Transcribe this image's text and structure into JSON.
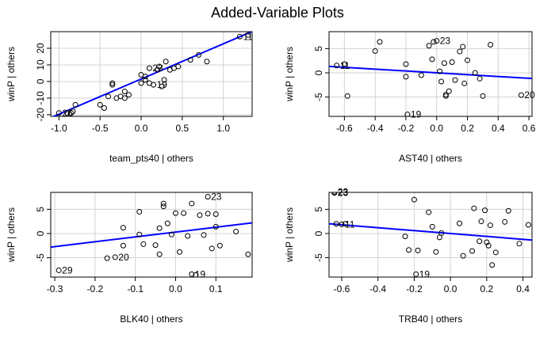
{
  "figure": {
    "title": "Added-Variable Plots",
    "colors": {
      "fit_line": "#0000ff",
      "grid": "#d3d3d3",
      "points": "#000000",
      "axes": "#000000"
    }
  },
  "chart_data": [
    {
      "type": "scatter",
      "xlabel": "team_pts40 | others",
      "ylabel": "winP  | others",
      "xlim": [
        -1.1,
        1.35
      ],
      "ylim": [
        -21,
        30
      ],
      "xticks": [
        -1.0,
        -0.5,
        0.0,
        0.5,
        1.0
      ],
      "xtick_labels": [
        "-1.0",
        "-0.5",
        "0.0",
        "0.5",
        "1.0"
      ],
      "yticks": [
        -20,
        -10,
        0,
        10,
        20
      ],
      "ytick_labels": [
        "-20",
        "-10",
        "0",
        "10",
        "20"
      ],
      "grid": true,
      "fit_line": {
        "intercept": 1.5,
        "slope": 21.2
      },
      "points": [
        [
          -1.0,
          -19
        ],
        [
          -0.9,
          -19
        ],
        [
          -0.85,
          -19
        ],
        [
          -0.83,
          -18
        ],
        [
          -0.8,
          -14
        ],
        [
          -0.5,
          -14
        ],
        [
          -0.45,
          -16
        ],
        [
          -0.4,
          -9
        ],
        [
          -0.35,
          -1
        ],
        [
          -0.35,
          -2
        ],
        [
          -0.3,
          -10
        ],
        [
          -0.25,
          -9
        ],
        [
          -0.2,
          -10
        ],
        [
          -0.2,
          -6
        ],
        [
          -0.15,
          -8
        ],
        [
          0.0,
          4
        ],
        [
          0.0,
          -1
        ],
        [
          0.05,
          1
        ],
        [
          0.05,
          3
        ],
        [
          0.1,
          8
        ],
        [
          0.1,
          -1
        ],
        [
          0.15,
          -2
        ],
        [
          0.2,
          7
        ],
        [
          0.22,
          9
        ],
        [
          0.25,
          -3
        ],
        [
          0.28,
          1
        ],
        [
          0.3,
          12
        ],
        [
          0.35,
          7
        ],
        [
          0.4,
          8
        ],
        [
          0.45,
          9
        ],
        [
          0.6,
          13
        ],
        [
          0.7,
          16
        ],
        [
          0.8,
          12
        ],
        [
          1.2,
          27
        ],
        [
          1.3,
          28
        ]
      ],
      "annotations": [
        {
          "text": "26",
          "x": -1.0,
          "y": -19
        },
        {
          "text": "23",
          "x": 0.1,
          "y": 8
        },
        {
          "text": "19",
          "x": 0.15,
          "y": -2
        },
        {
          "text": "11",
          "x": 1.2,
          "y": 27
        }
      ]
    },
    {
      "type": "scatter",
      "xlabel": "AST40 | others",
      "ylabel": "winP  | others",
      "xlim": [
        -0.7,
        0.62
      ],
      "ylim": [
        -9,
        8.5
      ],
      "xticks": [
        -0.6,
        -0.4,
        -0.2,
        0.0,
        0.2,
        0.4,
        0.6
      ],
      "xtick_labels": [
        "-0.6",
        "-0.4",
        "-0.2",
        "0.0",
        "0.2",
        "0.4",
        "0.6"
      ],
      "yticks": [
        -5,
        0,
        5
      ],
      "ytick_labels": [
        "-5",
        "0",
        "5"
      ],
      "grid": true,
      "fit_line": {
        "intercept": 0.0,
        "slope": -1.9
      },
      "points": [
        [
          -0.65,
          1.5
        ],
        [
          -0.6,
          1.8
        ],
        [
          -0.58,
          -4.8
        ],
        [
          -0.4,
          4.5
        ],
        [
          -0.37,
          6.4
        ],
        [
          -0.2,
          1.8
        ],
        [
          -0.2,
          -0.8
        ],
        [
          -0.19,
          -8.6
        ],
        [
          -0.05,
          5.6
        ],
        [
          -0.03,
          2.8
        ],
        [
          -0.02,
          6.4
        ],
        [
          0.0,
          6.6
        ],
        [
          0.02,
          0.3
        ],
        [
          0.03,
          -1.8
        ],
        [
          0.05,
          2.0
        ],
        [
          0.06,
          -4.5
        ],
        [
          0.06,
          -4.8
        ],
        [
          0.08,
          -3.8
        ],
        [
          0.1,
          2.2
        ],
        [
          0.12,
          -1.5
        ],
        [
          0.15,
          4.4
        ],
        [
          0.17,
          5.4
        ],
        [
          0.18,
          -2.2
        ],
        [
          0.2,
          2.6
        ],
        [
          0.25,
          0.0
        ],
        [
          0.28,
          -1.2
        ],
        [
          0.3,
          -4.8
        ],
        [
          0.35,
          5.8
        ],
        [
          0.55,
          -4.6
        ],
        [
          -0.1,
          -0.5
        ]
      ],
      "annotations": [
        {
          "text": "11",
          "x": -0.65,
          "y": 1.5
        },
        {
          "text": "23",
          "x": 0.0,
          "y": 6.6
        },
        {
          "text": "19",
          "x": -0.19,
          "y": -8.6
        },
        {
          "text": "20",
          "x": 0.55,
          "y": -4.6
        }
      ]
    },
    {
      "type": "scatter",
      "xlabel": "BLK40 | others",
      "ylabel": "winP  | others",
      "xlim": [
        -0.31,
        0.19
      ],
      "ylim": [
        -9,
        8.5
      ],
      "xticks": [
        -0.3,
        -0.2,
        -0.1,
        0.0,
        0.1
      ],
      "xtick_labels": [
        "-0.3",
        "-0.2",
        "-0.1",
        "0.0",
        "0.1"
      ],
      "yticks": [
        -5,
        0,
        5
      ],
      "ytick_labels": [
        "-5",
        "0",
        "5"
      ],
      "grid": true,
      "fit_line": {
        "intercept": 0.3,
        "slope": 10.0
      },
      "points": [
        [
          -0.29,
          -7.6
        ],
        [
          -0.17,
          -5.1
        ],
        [
          -0.15,
          -4.9
        ],
        [
          -0.13,
          1.2
        ],
        [
          -0.13,
          -2.5
        ],
        [
          -0.09,
          4.5
        ],
        [
          -0.09,
          -0.2
        ],
        [
          -0.08,
          -2.2
        ],
        [
          -0.05,
          -2.4
        ],
        [
          -0.04,
          -4.3
        ],
        [
          -0.04,
          1.1
        ],
        [
          -0.03,
          5.6
        ],
        [
          -0.03,
          6.2
        ],
        [
          -0.02,
          2.1
        ],
        [
          -0.01,
          -0.2
        ],
        [
          0.0,
          4.2
        ],
        [
          0.01,
          -3.8
        ],
        [
          0.02,
          4.2
        ],
        [
          0.03,
          -0.5
        ],
        [
          0.04,
          6.2
        ],
        [
          0.05,
          -8.6
        ],
        [
          0.06,
          3.8
        ],
        [
          0.07,
          -0.3
        ],
        [
          0.08,
          4.1
        ],
        [
          0.09,
          -3.1
        ],
        [
          0.1,
          1.4
        ],
        [
          0.1,
          4.0
        ],
        [
          0.11,
          -2.5
        ],
        [
          0.15,
          0.4
        ],
        [
          0.18,
          -4.3
        ],
        [
          0.08,
          7.6
        ],
        [
          0.04,
          -8.4
        ]
      ],
      "annotations": [
        {
          "text": "29",
          "x": -0.29,
          "y": -7.6
        },
        {
          "text": "20",
          "x": -0.15,
          "y": -4.9
        },
        {
          "text": "23",
          "x": 0.08,
          "y": 7.6
        },
        {
          "text": "19",
          "x": 0.04,
          "y": -8.4
        }
      ]
    },
    {
      "type": "scatter",
      "xlabel": "TRB40 | others",
      "ylabel": "winP  | others",
      "xlim": [
        -0.67,
        0.45
      ],
      "ylim": [
        -9,
        8.5
      ],
      "xticks": [
        -0.6,
        -0.4,
        -0.2,
        0.0,
        0.2,
        0.4
      ],
      "xtick_labels": [
        "-0.6",
        "-0.4",
        "-0.2",
        "0.0",
        "0.2",
        "0.4"
      ],
      "yticks": [
        -5,
        0,
        5
      ],
      "ytick_labels": [
        "-5",
        "0",
        "5"
      ],
      "grid": true,
      "fit_line": {
        "intercept": 0.0,
        "slope": -3.0
      },
      "points": [
        [
          -0.64,
          8.4
        ],
        [
          -0.64,
          8.6
        ],
        [
          -0.63,
          2.0
        ],
        [
          -0.6,
          1.9
        ],
        [
          -0.58,
          2.0
        ],
        [
          -0.25,
          -0.6
        ],
        [
          -0.23,
          -3.4
        ],
        [
          -0.2,
          7.0
        ],
        [
          -0.19,
          -8.4
        ],
        [
          -0.18,
          -3.5
        ],
        [
          -0.12,
          4.4
        ],
        [
          -0.1,
          1.4
        ],
        [
          -0.08,
          -3.8
        ],
        [
          -0.06,
          -0.8
        ],
        [
          -0.05,
          0.1
        ],
        [
          0.05,
          2.1
        ],
        [
          0.07,
          -4.6
        ],
        [
          0.12,
          -3.6
        ],
        [
          0.13,
          5.2
        ],
        [
          0.16,
          -1.6
        ],
        [
          0.17,
          2.5
        ],
        [
          0.19,
          4.8
        ],
        [
          0.2,
          -1.8
        ],
        [
          0.21,
          -2.5
        ],
        [
          0.22,
          1.7
        ],
        [
          0.23,
          -6.5
        ],
        [
          0.25,
          -3.9
        ],
        [
          0.3,
          2.4
        ],
        [
          0.32,
          4.7
        ],
        [
          0.38,
          -2.1
        ],
        [
          0.43,
          1.8
        ]
      ],
      "annotations": [
        {
          "text": "23",
          "x": -0.64,
          "y": 8.6
        },
        {
          "text": "23",
          "x": -0.64,
          "y": 8.4
        },
        {
          "text": "11",
          "x": -0.6,
          "y": 1.9
        },
        {
          "text": "19",
          "x": -0.19,
          "y": -8.4
        }
      ]
    }
  ]
}
